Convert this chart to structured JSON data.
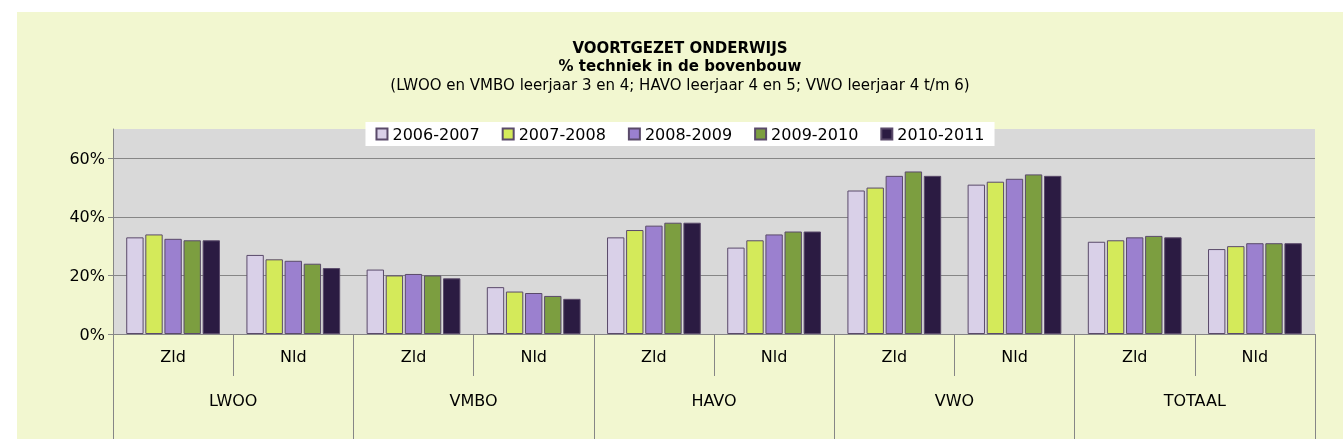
{
  "chart_data": {
    "type": "bar",
    "title": "VOORTGEZET ONDERWIJS\n% techniek in de bovenbouw",
    "subtitle": "(LWOO en VMBO leerjaar 3 en 4; HAVO leerjaar 4 en 5; VWO leerjaar 4 t/m 6)",
    "categories": [
      "Zld",
      "Nld",
      "Zld",
      "Nld",
      "Zld",
      "Nld",
      "Zld",
      "Nld",
      "Zld",
      "Nld"
    ],
    "annotations": [
      "LWOO",
      "VMBO",
      "HAVO",
      "VWO",
      "TOTAAL"
    ],
    "series": [
      {
        "name": "2006-2007",
        "color": "#d9d0e8",
        "values": [
          33,
          27,
          22,
          16,
          33,
          29.5,
          49,
          51,
          31.5,
          29
        ]
      },
      {
        "name": "2007-2008",
        "color": "#d4ea5a",
        "values": [
          34,
          25.5,
          20,
          14.5,
          35.5,
          32,
          50,
          52,
          32,
          30
        ]
      },
      {
        "name": "2008-2009",
        "color": "#9b80cf",
        "values": [
          32.5,
          25,
          20.5,
          14,
          37,
          34,
          54,
          53,
          33,
          31
        ]
      },
      {
        "name": "2009-2010",
        "color": "#7c9e40",
        "values": [
          32,
          24,
          20,
          13,
          38,
          35,
          55.5,
          54.5,
          33.5,
          31
        ]
      },
      {
        "name": "2010-2011",
        "color": "#2b1b42",
        "values": [
          32,
          22.5,
          19,
          12,
          38,
          35,
          54,
          54,
          33,
          31
        ]
      }
    ],
    "ylim": [
      0,
      70
    ],
    "yticks": [
      {
        "value": 0,
        "label": "0%"
      },
      {
        "value": 20,
        "label": "20%"
      },
      {
        "value": 40,
        "label": "40%"
      },
      {
        "value": 60,
        "label": "60%"
      }
    ],
    "grid": "y",
    "legend": "top"
  }
}
